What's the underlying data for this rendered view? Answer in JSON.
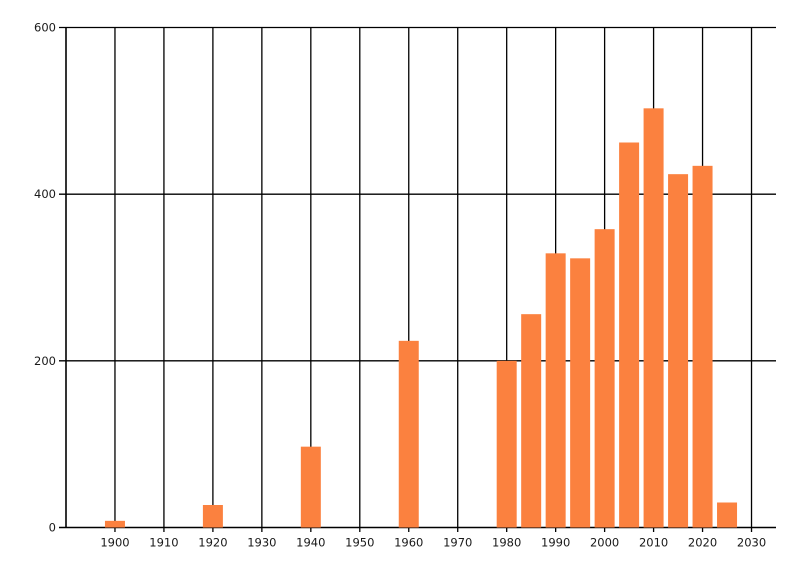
{
  "chart_data": {
    "type": "bar",
    "title": "",
    "xlabel": "",
    "ylabel": "",
    "legend": "none",
    "grid": true,
    "background_color": "#ffffff",
    "grid_color": "#000000",
    "bar_color": "#fb813f",
    "x": [
      1900,
      1920,
      1940,
      1960,
      1980,
      1985,
      1990,
      1995,
      2000,
      2005,
      2010,
      2015,
      2020,
      2025
    ],
    "values": [
      8,
      27,
      97,
      224,
      200,
      256,
      329,
      323,
      358,
      462,
      503,
      424,
      434,
      30
    ],
    "xlim": [
      1890,
      2035
    ],
    "ylim": [
      0,
      600
    ],
    "x_ticks": [
      1900,
      1910,
      1920,
      1930,
      1940,
      1950,
      1960,
      1970,
      1980,
      1990,
      2000,
      2010,
      2020,
      2030
    ],
    "x_tick_labels": [
      "1900",
      "1910",
      "1920",
      "1930",
      "1940",
      "1950",
      "1960",
      "1970",
      "1980",
      "1990",
      "2000",
      "2010",
      "2020",
      "2030"
    ],
    "y_ticks": [
      0,
      200,
      400,
      600
    ],
    "y_tick_labels": [
      "0",
      "200",
      "400",
      "600"
    ]
  }
}
